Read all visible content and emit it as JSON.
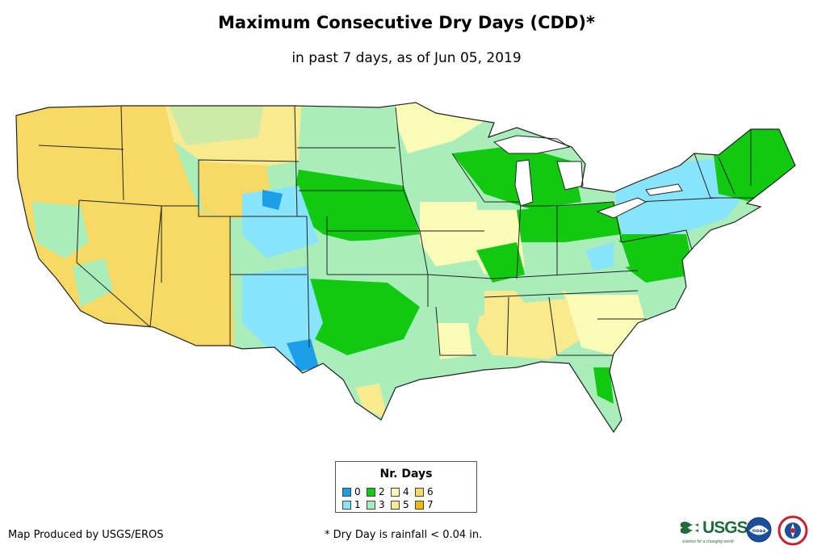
{
  "title": "Maximum Consecutive Dry Days (CDD)*",
  "subtitle": "in past 7 days, as of Jun 05, 2019",
  "legend": {
    "title": "Nr. Days",
    "items": [
      {
        "label": "0",
        "color": "#1c9ee8"
      },
      {
        "label": "1",
        "color": "#88e4fa"
      },
      {
        "label": "2",
        "color": "#12c912"
      },
      {
        "label": "3",
        "color": "#a9edbb"
      },
      {
        "label": "4",
        "color": "#fbfbb8"
      },
      {
        "label": "5",
        "color": "#f9e98f"
      },
      {
        "label": "6",
        "color": "#f7d963"
      },
      {
        "label": "7",
        "color": "#f5b800"
      }
    ]
  },
  "footer": {
    "credit": "Map Produced by USGS/EROS",
    "note": "* Dry Day is rainfall < 0.04 in."
  },
  "logos": {
    "usgs": "USGS",
    "usgs_tagline": "science for a changing world",
    "noaa": "noaa"
  }
}
